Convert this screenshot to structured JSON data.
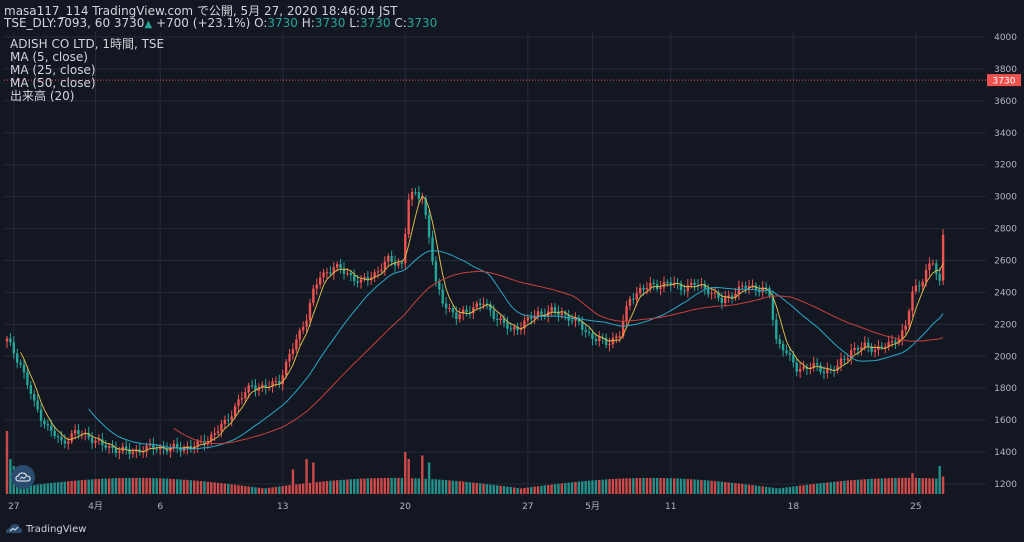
{
  "header": {
    "line1": "masa117_114 TradingView.com で公開, 5月 27, 2020 18:46:04 JST",
    "symbol": "TSE_DLY:7093, 60",
    "last": "3730",
    "change": "+700 (+23.1%)",
    "o_label": "O:",
    "o": "3730",
    "h_label": "H:",
    "h": "3730",
    "l_label": "L:",
    "l": "3730",
    "c_label": "C:",
    "c": "3730"
  },
  "legend": {
    "title": "ADISH CO LTD, 1時間, TSE",
    "ma5": "MA (5, close)",
    "ma25": "MA (25, close)",
    "ma50": "MA (50, close)",
    "volume": "出来高 (20)"
  },
  "brand": {
    "name": "TradingView"
  },
  "chart_data": {
    "type": "candlestick",
    "price_axis": {
      "min": 1200,
      "max": 4000,
      "ticks": [
        1200,
        1400,
        1600,
        1800,
        2000,
        2200,
        2400,
        2600,
        2800,
        3000,
        3200,
        3400,
        3600,
        3800,
        4000
      ],
      "tick_labels": [
        "1200",
        "1400",
        "1600",
        "1800",
        "2000",
        "2200",
        "2400",
        "2600",
        "2800",
        "3000",
        "3200",
        "3400",
        "3600",
        "3800",
        "4000"
      ]
    },
    "last_price": 3730,
    "last_price_label": "3730",
    "x_ticks": [
      {
        "label": "27",
        "bar": 2
      },
      {
        "label": "4月",
        "bar": 26
      },
      {
        "label": "6",
        "bar": 45
      },
      {
        "label": "13",
        "bar": 81
      },
      {
        "label": "20",
        "bar": 117
      },
      {
        "label": "27",
        "bar": 153
      },
      {
        "label": "5月",
        "bar": 172
      },
      {
        "label": "11",
        "bar": 195
      },
      {
        "label": "18",
        "bar": 231
      },
      {
        "label": "25",
        "bar": 267
      }
    ],
    "bar_count": 283,
    "anchors": [
      [
        0,
        2100
      ],
      [
        4,
        1950
      ],
      [
        8,
        1700
      ],
      [
        12,
        1550
      ],
      [
        16,
        1460
      ],
      [
        20,
        1520
      ],
      [
        24,
        1500
      ],
      [
        28,
        1440
      ],
      [
        32,
        1420
      ],
      [
        36,
        1400
      ],
      [
        40,
        1420
      ],
      [
        44,
        1430
      ],
      [
        48,
        1420
      ],
      [
        52,
        1430
      ],
      [
        56,
        1440
      ],
      [
        60,
        1500
      ],
      [
        64,
        1580
      ],
      [
        68,
        1720
      ],
      [
        72,
        1820
      ],
      [
        76,
        1800
      ],
      [
        80,
        1850
      ],
      [
        84,
        2050
      ],
      [
        88,
        2250
      ],
      [
        90,
        2400
      ],
      [
        92,
        2500
      ],
      [
        96,
        2560
      ],
      [
        100,
        2520
      ],
      [
        104,
        2460
      ],
      [
        108,
        2520
      ],
      [
        112,
        2600
      ],
      [
        116,
        2580
      ],
      [
        118,
        2980
      ],
      [
        120,
        3020
      ],
      [
        122,
        3000
      ],
      [
        124,
        2750
      ],
      [
        126,
        2450
      ],
      [
        128,
        2350
      ],
      [
        132,
        2240
      ],
      [
        136,
        2300
      ],
      [
        140,
        2330
      ],
      [
        144,
        2240
      ],
      [
        148,
        2160
      ],
      [
        152,
        2210
      ],
      [
        156,
        2270
      ],
      [
        160,
        2280
      ],
      [
        164,
        2260
      ],
      [
        168,
        2200
      ],
      [
        172,
        2120
      ],
      [
        176,
        2080
      ],
      [
        180,
        2140
      ],
      [
        183,
        2360
      ],
      [
        186,
        2420
      ],
      [
        190,
        2440
      ],
      [
        194,
        2460
      ],
      [
        198,
        2430
      ],
      [
        202,
        2450
      ],
      [
        206,
        2420
      ],
      [
        210,
        2340
      ],
      [
        214,
        2410
      ],
      [
        218,
        2440
      ],
      [
        222,
        2420
      ],
      [
        224,
        2380
      ],
      [
        226,
        2100
      ],
      [
        228,
        2060
      ],
      [
        230,
        1980
      ],
      [
        232,
        1920
      ],
      [
        236,
        1940
      ],
      [
        240,
        1910
      ],
      [
        244,
        1930
      ],
      [
        248,
        2040
      ],
      [
        252,
        2060
      ],
      [
        256,
        2050
      ],
      [
        260,
        2080
      ],
      [
        264,
        2180
      ],
      [
        266,
        2400
      ],
      [
        268,
        2450
      ],
      [
        270,
        2540
      ],
      [
        272,
        2580
      ],
      [
        274,
        2460
      ],
      [
        275,
        2760
      ]
    ],
    "ma_periods": [
      5,
      25,
      50
    ],
    "volume_label": "出来高 (20)"
  },
  "colors": {
    "background": "#131722",
    "grid": "#242a38",
    "up": "#ef5350",
    "down": "#26a69a",
    "ma5": "#d6b84a",
    "ma25": "#2aa7c7",
    "ma50": "#c8403c",
    "axis_text": "#b2b5be",
    "price_tag": "#ef5350"
  }
}
